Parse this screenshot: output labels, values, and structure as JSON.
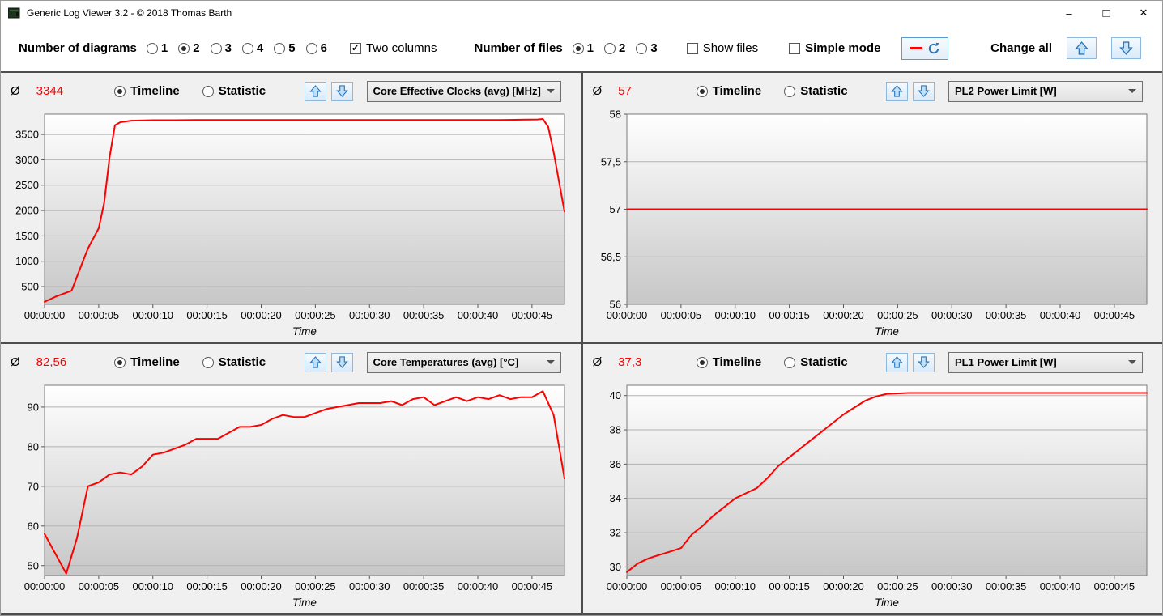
{
  "window": {
    "title": "Generic Log Viewer 3.2 - © 2018 Thomas Barth",
    "min_glyph": "–",
    "max_glyph": "□",
    "close_glyph": "✕"
  },
  "toolbar": {
    "checkmark_glyph": "✓",
    "diagrams": {
      "label": "Number of diagrams",
      "options": [
        "1",
        "2",
        "3",
        "4",
        "5",
        "6"
      ],
      "selected": "2"
    },
    "two_columns": {
      "label": "Two columns",
      "checked": true
    },
    "files": {
      "label": "Number of files",
      "options": [
        "1",
        "2",
        "3"
      ],
      "selected": "1"
    },
    "show_files": {
      "label": "Show files",
      "checked": false
    },
    "simple_mode": {
      "label": "Simple mode",
      "checked": false
    },
    "change_all": {
      "label": "Change all"
    }
  },
  "panels": [
    {
      "avg_symbol": "Ø",
      "avg_value": "3344",
      "timeline_label": "Timeline",
      "statistic_label": "Statistic",
      "selected_mode": "Timeline",
      "dropdown_value": "Core Effective Clocks (avg) [MHz]",
      "chart_data": {
        "type": "line",
        "series_color": "#ff0000",
        "xlabel": "Time",
        "xlim": [
          0,
          48
        ],
        "ylim": [
          150,
          3900
        ],
        "xticks": [
          0,
          5,
          10,
          15,
          20,
          25,
          30,
          35,
          40,
          45
        ],
        "xtick_labels": [
          "00:00:00",
          "00:00:05",
          "00:00:10",
          "00:00:15",
          "00:00:20",
          "00:00:25",
          "00:00:30",
          "00:00:35",
          "00:00:40",
          "00:00:45"
        ],
        "yticks": [
          500,
          1000,
          1500,
          2000,
          2500,
          3000,
          3500
        ],
        "ytick_labels": [
          "500",
          "1000",
          "1500",
          "2000",
          "2500",
          "3000",
          "3500"
        ],
        "points": [
          [
            0,
            200
          ],
          [
            1,
            300
          ],
          [
            2,
            380
          ],
          [
            2.5,
            420
          ],
          [
            3,
            700
          ],
          [
            4,
            1250
          ],
          [
            5,
            1650
          ],
          [
            5.5,
            2150
          ],
          [
            6,
            3050
          ],
          [
            6.5,
            3680
          ],
          [
            7,
            3740
          ],
          [
            8,
            3770
          ],
          [
            10,
            3780
          ],
          [
            12,
            3780
          ],
          [
            14,
            3785
          ],
          [
            16,
            3785
          ],
          [
            18,
            3785
          ],
          [
            20,
            3785
          ],
          [
            22,
            3785
          ],
          [
            24,
            3785
          ],
          [
            26,
            3785
          ],
          [
            28,
            3785
          ],
          [
            30,
            3785
          ],
          [
            32,
            3785
          ],
          [
            34,
            3785
          ],
          [
            36,
            3785
          ],
          [
            38,
            3785
          ],
          [
            40,
            3785
          ],
          [
            42,
            3785
          ],
          [
            44,
            3790
          ],
          [
            45.5,
            3795
          ],
          [
            46,
            3805
          ],
          [
            46.5,
            3650
          ],
          [
            47,
            3150
          ],
          [
            48,
            1980
          ]
        ]
      }
    },
    {
      "avg_symbol": "Ø",
      "avg_value": "57",
      "timeline_label": "Timeline",
      "statistic_label": "Statistic",
      "selected_mode": "Timeline",
      "dropdown_value": "PL2 Power Limit [W]",
      "chart_data": {
        "type": "line",
        "series_color": "#ff0000",
        "xlabel": "Time",
        "xlim": [
          0,
          48
        ],
        "ylim": [
          56,
          58
        ],
        "xticks": [
          0,
          5,
          10,
          15,
          20,
          25,
          30,
          35,
          40,
          45
        ],
        "xtick_labels": [
          "00:00:00",
          "00:00:05",
          "00:00:10",
          "00:00:15",
          "00:00:20",
          "00:00:25",
          "00:00:30",
          "00:00:35",
          "00:00:40",
          "00:00:45"
        ],
        "yticks": [
          56,
          56.5,
          57,
          57.5,
          58
        ],
        "ytick_labels": [
          "56",
          "56,5",
          "57",
          "57,5",
          "58"
        ],
        "points": [
          [
            0,
            57
          ],
          [
            48,
            57
          ]
        ]
      }
    },
    {
      "avg_symbol": "Ø",
      "avg_value": "82,56",
      "timeline_label": "Timeline",
      "statistic_label": "Statistic",
      "selected_mode": "Timeline",
      "dropdown_value": "Core Temperatures (avg) [°C]",
      "chart_data": {
        "type": "line",
        "series_color": "#ff0000",
        "xlabel": "Time",
        "xlim": [
          0,
          48
        ],
        "ylim": [
          47.5,
          95.5
        ],
        "xticks": [
          0,
          5,
          10,
          15,
          20,
          25,
          30,
          35,
          40,
          45
        ],
        "xtick_labels": [
          "00:00:00",
          "00:00:05",
          "00:00:10",
          "00:00:15",
          "00:00:20",
          "00:00:25",
          "00:00:30",
          "00:00:35",
          "00:00:40",
          "00:00:45"
        ],
        "yticks": [
          50,
          60,
          70,
          80,
          90
        ],
        "ytick_labels": [
          "50",
          "60",
          "70",
          "80",
          "90"
        ],
        "points": [
          [
            0,
            58
          ],
          [
            1,
            53
          ],
          [
            2,
            48
          ],
          [
            3,
            57
          ],
          [
            4,
            70
          ],
          [
            5,
            71
          ],
          [
            6,
            73
          ],
          [
            7,
            73.5
          ],
          [
            8,
            73
          ],
          [
            9,
            75
          ],
          [
            10,
            78
          ],
          [
            11,
            78.5
          ],
          [
            12,
            79.5
          ],
          [
            13,
            80.5
          ],
          [
            14,
            82
          ],
          [
            15,
            82
          ],
          [
            16,
            82
          ],
          [
            17,
            83.5
          ],
          [
            18,
            85
          ],
          [
            19,
            85
          ],
          [
            20,
            85.5
          ],
          [
            21,
            87
          ],
          [
            22,
            88
          ],
          [
            23,
            87.5
          ],
          [
            24,
            87.5
          ],
          [
            25,
            88.5
          ],
          [
            26,
            89.5
          ],
          [
            27,
            90
          ],
          [
            28,
            90.5
          ],
          [
            29,
            91
          ],
          [
            30,
            91
          ],
          [
            31,
            91
          ],
          [
            32,
            91.5
          ],
          [
            33,
            90.5
          ],
          [
            34,
            92
          ],
          [
            35,
            92.5
          ],
          [
            36,
            90.5
          ],
          [
            37,
            91.5
          ],
          [
            38,
            92.5
          ],
          [
            39,
            91.5
          ],
          [
            40,
            92.5
          ],
          [
            41,
            92
          ],
          [
            42,
            93
          ],
          [
            43,
            92
          ],
          [
            44,
            92.5
          ],
          [
            45,
            92.5
          ],
          [
            46,
            94
          ],
          [
            47,
            88
          ],
          [
            48,
            72
          ]
        ]
      }
    },
    {
      "avg_symbol": "Ø",
      "avg_value": "37,3",
      "timeline_label": "Timeline",
      "statistic_label": "Statistic",
      "selected_mode": "Timeline",
      "dropdown_value": "PL1 Power Limit [W]",
      "chart_data": {
        "type": "line",
        "series_color": "#ff0000",
        "xlabel": "Time",
        "xlim": [
          0,
          48
        ],
        "ylim": [
          29.5,
          40.6
        ],
        "xticks": [
          0,
          5,
          10,
          15,
          20,
          25,
          30,
          35,
          40,
          45
        ],
        "xtick_labels": [
          "00:00:00",
          "00:00:05",
          "00:00:10",
          "00:00:15",
          "00:00:20",
          "00:00:25",
          "00:00:30",
          "00:00:35",
          "00:00:40",
          "00:00:45"
        ],
        "yticks": [
          30,
          32,
          34,
          36,
          38,
          40
        ],
        "ytick_labels": [
          "30",
          "32",
          "34",
          "36",
          "38",
          "40"
        ],
        "points": [
          [
            0,
            29.7
          ],
          [
            1,
            30.2
          ],
          [
            2,
            30.5
          ],
          [
            3,
            30.7
          ],
          [
            4,
            30.9
          ],
          [
            5,
            31.1
          ],
          [
            6,
            31.9
          ],
          [
            7,
            32.4
          ],
          [
            8,
            33
          ],
          [
            9,
            33.5
          ],
          [
            10,
            34
          ],
          [
            11,
            34.3
          ],
          [
            12,
            34.6
          ],
          [
            13,
            35.2
          ],
          [
            14,
            35.9
          ],
          [
            15,
            36.4
          ],
          [
            16,
            36.9
          ],
          [
            17,
            37.4
          ],
          [
            18,
            37.9
          ],
          [
            19,
            38.4
          ],
          [
            20,
            38.9
          ],
          [
            21,
            39.3
          ],
          [
            22,
            39.7
          ],
          [
            23,
            39.95
          ],
          [
            24,
            40.1
          ],
          [
            26,
            40.15
          ],
          [
            28,
            40.15
          ],
          [
            32,
            40.15
          ],
          [
            36,
            40.15
          ],
          [
            40,
            40.15
          ],
          [
            44,
            40.15
          ],
          [
            48,
            40.15
          ]
        ]
      }
    }
  ]
}
